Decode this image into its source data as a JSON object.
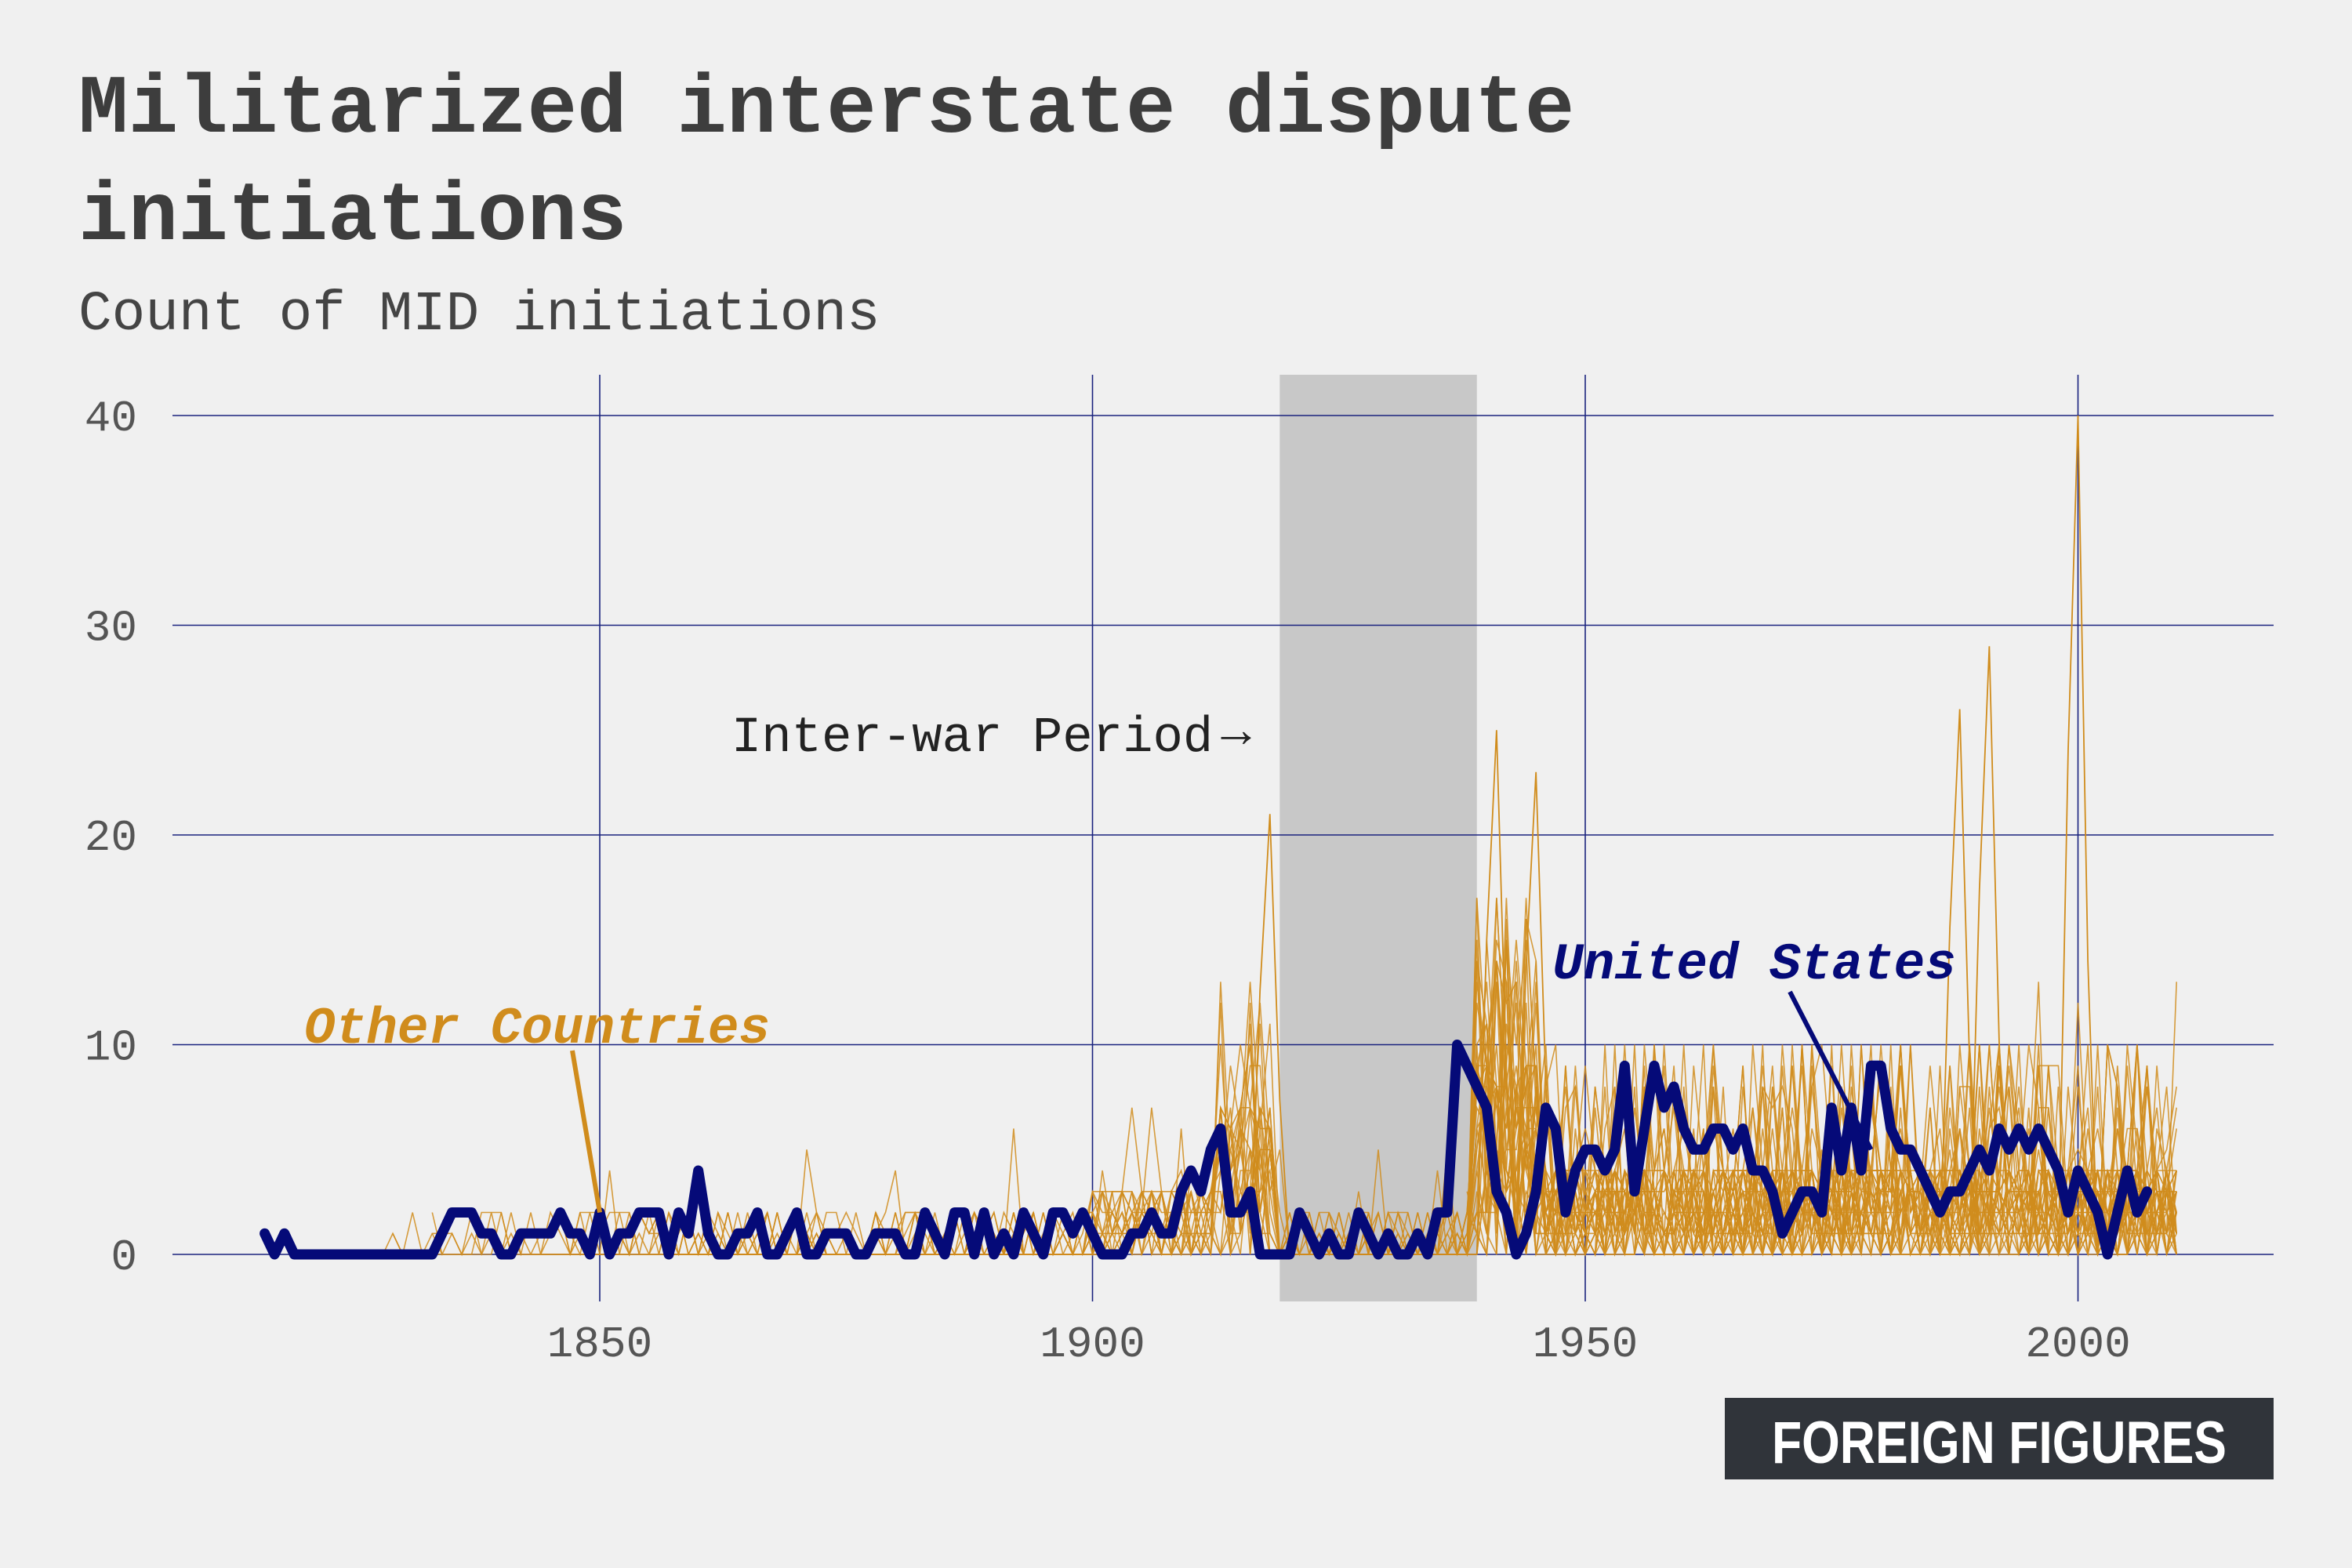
{
  "title_line1": "Militarized interstate dispute",
  "title_line2": "initiations",
  "subtitle": "Count of MID initiations",
  "logo": "FOREIGN FIGURES",
  "colors": {
    "background": "#f0f0f0",
    "grid": "#1a237e",
    "us_line": "#050a78",
    "other_lines": "#d08c1c",
    "shade": "#c8c8c8"
  },
  "chart_data": {
    "type": "line",
    "title": "Militarized interstate dispute initiations",
    "subtitle": "Count of MID initiations",
    "xlim": [
      1808,
      2020
    ],
    "ylim": [
      -2,
      42
    ],
    "x_ticks": [
      1850,
      1900,
      1950,
      2000
    ],
    "y_ticks": [
      0,
      10,
      20,
      30,
      40
    ],
    "x_tick_labels": [
      "1850",
      "1900",
      "1950",
      "2000"
    ],
    "y_tick_labels": [
      "0",
      "10",
      "20",
      "30",
      "40"
    ],
    "grid": true,
    "shaded_region": {
      "x": [
        1919,
        1939
      ],
      "label": "Inter-war Period",
      "arrow": "→"
    },
    "annotations": {
      "other": {
        "text": "Other Countries",
        "color": "#d08c1c",
        "point": [
          1850,
          2
        ]
      },
      "us": {
        "text": "United States",
        "color": "#050a78",
        "point": [
          1979,
          5
        ]
      }
    },
    "series": [
      {
        "name": "United States",
        "x_start": 1816,
        "values": [
          1,
          0,
          1,
          0,
          0,
          0,
          0,
          0,
          0,
          0,
          0,
          0,
          0,
          0,
          0,
          0,
          0,
          0,
          1,
          2,
          2,
          2,
          1,
          1,
          0,
          0,
          1,
          1,
          1,
          1,
          2,
          1,
          1,
          0,
          2,
          0,
          1,
          1,
          2,
          2,
          2,
          0,
          2,
          1,
          4,
          1,
          0,
          0,
          1,
          1,
          2,
          0,
          0,
          1,
          2,
          0,
          0,
          1,
          1,
          1,
          0,
          0,
          1,
          1,
          1,
          0,
          0,
          2,
          1,
          0,
          2,
          2,
          0,
          2,
          0,
          1,
          0,
          2,
          1,
          0,
          2,
          2,
          1,
          2,
          1,
          0,
          0,
          0,
          1,
          1,
          2,
          1,
          1,
          3,
          4,
          3,
          5,
          6,
          2,
          2,
          3,
          0,
          0,
          0,
          0,
          2,
          1,
          0,
          1,
          0,
          0,
          2,
          1,
          0,
          1,
          0,
          0,
          1,
          0,
          2,
          2,
          10,
          9,
          8,
          7,
          3,
          2,
          0,
          1,
          3,
          7,
          6,
          2,
          4,
          5,
          5,
          4,
          5,
          9,
          3,
          6,
          9,
          7,
          8,
          6,
          5,
          5,
          6,
          6,
          5,
          6,
          4,
          4,
          3,
          1,
          2,
          3,
          3,
          2,
          7,
          4,
          7,
          4,
          9,
          9,
          6,
          5,
          5,
          4,
          3,
          2,
          3,
          3,
          4,
          5,
          4,
          6,
          5,
          6,
          5,
          6,
          5,
          4,
          2,
          4,
          3,
          2,
          0,
          2,
          4,
          2,
          3
        ]
      }
    ],
    "other_countries_count": 40,
    "other_countries_note_peaks": [
      [
        1918,
        21
      ],
      [
        1941,
        25
      ],
      [
        1945,
        23
      ],
      [
        1988,
        26
      ],
      [
        1991,
        29
      ],
      [
        2000,
        40
      ]
    ]
  }
}
